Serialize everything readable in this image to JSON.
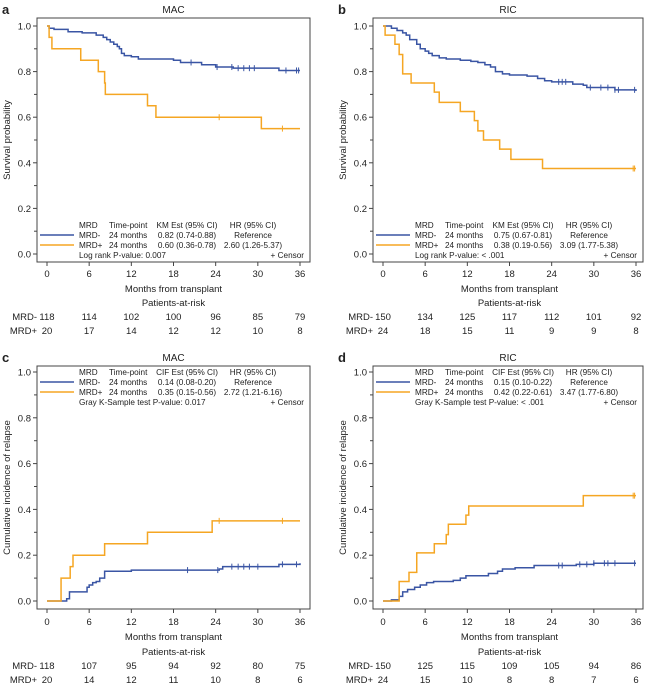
{
  "chart_data": [
    {
      "panel": "a",
      "type": "line",
      "subtype": "kaplan-meier step",
      "title": "MAC",
      "xlabel": "Months from transplant",
      "ylabel": "Survival probability",
      "xlim": [
        0,
        36
      ],
      "ylim": [
        0,
        1.0
      ],
      "xticks": [
        "0",
        "6",
        "12",
        "18",
        "24",
        "30",
        "36"
      ],
      "yticks": [
        "0.0",
        "0.2",
        "0.4",
        "0.6",
        "0.8",
        "1.0"
      ],
      "legend_position": "bottom-left",
      "legend": {
        "headers": [
          "MRD",
          "Time-point",
          "KM Est (95% CI)",
          "HR (95% CI)"
        ],
        "rows": [
          {
            "group": "MRD-",
            "timepoint": "24 months",
            "est": "0.82 (0.74-0.88)",
            "hr": "Reference"
          },
          {
            "group": "MRD+",
            "timepoint": "24 months",
            "est": "0.60 (0.36-0.78)",
            "hr": "2.60 (1.26-5.37)"
          }
        ],
        "test": "Log rank P-value: 0.007",
        "censor": "+ Censor"
      },
      "series": [
        {
          "name": "MRD-",
          "color": "#3a55a4",
          "steps": [
            [
              0,
              1.0
            ],
            [
              0.3,
              0.99
            ],
            [
              1,
              0.985
            ],
            [
              3,
              0.975
            ],
            [
              5,
              0.97
            ],
            [
              7,
              0.96
            ],
            [
              8,
              0.95
            ],
            [
              8.5,
              0.94
            ],
            [
              9,
              0.93
            ],
            [
              9.5,
              0.92
            ],
            [
              10,
              0.91
            ],
            [
              10.3,
              0.9
            ],
            [
              10.6,
              0.88
            ],
            [
              11,
              0.87
            ],
            [
              12,
              0.865
            ],
            [
              13,
              0.855
            ],
            [
              18,
              0.85
            ],
            [
              19,
              0.84
            ],
            [
              22,
              0.83
            ],
            [
              24,
              0.82
            ],
            [
              26.5,
              0.815
            ],
            [
              33,
              0.805
            ],
            [
              36,
              0.805
            ]
          ],
          "censors": [
            20.5,
            24.2,
            26.3,
            27.2,
            28,
            28.8,
            29.5,
            34,
            35.5,
            35.8
          ]
        },
        {
          "name": "MRD+",
          "color": "#f5a623",
          "steps": [
            [
              0,
              1.0
            ],
            [
              0.3,
              0.95
            ],
            [
              0.7,
              0.9
            ],
            [
              4.8,
              0.85
            ],
            [
              7.3,
              0.8
            ],
            [
              8.2,
              0.75
            ],
            [
              8.3,
              0.7
            ],
            [
              14.3,
              0.65
            ],
            [
              15.5,
              0.6
            ],
            [
              30.5,
              0.55
            ],
            [
              36,
              0.55
            ]
          ],
          "censors": [
            24.5,
            33.5
          ]
        }
      ],
      "risk_table": {
        "title": "Patients-at-risk",
        "rows": [
          {
            "label": "MRD-",
            "values": [
              118,
              114,
              102,
              100,
              96,
              85,
              79
            ]
          },
          {
            "label": "MRD+",
            "values": [
              20,
              17,
              14,
              12,
              12,
              10,
              8
            ]
          }
        ]
      }
    },
    {
      "panel": "b",
      "type": "line",
      "subtype": "kaplan-meier step",
      "title": "RIC",
      "xlabel": "Months from transplant",
      "ylabel": "Survival probability",
      "xlim": [
        0,
        36
      ],
      "ylim": [
        0,
        1.0
      ],
      "xticks": [
        "0",
        "6",
        "12",
        "18",
        "24",
        "30",
        "36"
      ],
      "yticks": [
        "0.0",
        "0.2",
        "0.4",
        "0.6",
        "0.8",
        "1.0"
      ],
      "legend_position": "bottom-left",
      "legend": {
        "headers": [
          "MRD",
          "Time-point",
          "KM Est (95% CI)",
          "HR (95% CI)"
        ],
        "rows": [
          {
            "group": "MRD-",
            "timepoint": "24 months",
            "est": "0.75 (0.67-0.81)",
            "hr": "Reference"
          },
          {
            "group": "MRD+",
            "timepoint": "24 months",
            "est": "0.38 (0.19-0.56)",
            "hr": "3.09 (1.77-5.38)"
          }
        ],
        "test": "Log rank P-value: < .001",
        "censor": "+ Censor"
      },
      "series": [
        {
          "name": "MRD-",
          "color": "#3a55a4",
          "steps": [
            [
              0,
              1.0
            ],
            [
              1.2,
              0.99
            ],
            [
              2,
              0.98
            ],
            [
              2.8,
              0.97
            ],
            [
              3.3,
              0.96
            ],
            [
              3.8,
              0.94
            ],
            [
              4.8,
              0.92
            ],
            [
              5.3,
              0.9
            ],
            [
              6,
              0.89
            ],
            [
              6.5,
              0.88
            ],
            [
              7,
              0.87
            ],
            [
              8,
              0.86
            ],
            [
              9,
              0.855
            ],
            [
              11,
              0.85
            ],
            [
              12.5,
              0.845
            ],
            [
              13.5,
              0.84
            ],
            [
              14.5,
              0.83
            ],
            [
              15.3,
              0.82
            ],
            [
              16,
              0.8
            ],
            [
              17,
              0.79
            ],
            [
              18,
              0.785
            ],
            [
              20.5,
              0.78
            ],
            [
              22,
              0.77
            ],
            [
              23,
              0.76
            ],
            [
              24,
              0.755
            ],
            [
              27,
              0.745
            ],
            [
              28.5,
              0.74
            ],
            [
              29,
              0.73
            ],
            [
              33,
              0.72
            ],
            [
              36,
              0.715
            ]
          ],
          "censors": [
            25,
            25.5,
            26,
            29.5,
            31,
            32,
            33,
            33.5,
            35.8
          ]
        },
        {
          "name": "MRD+",
          "color": "#f5a623",
          "steps": [
            [
              0,
              1.0
            ],
            [
              0.3,
              0.96
            ],
            [
              1.7,
              0.92
            ],
            [
              2.3,
              0.875
            ],
            [
              2.8,
              0.79
            ],
            [
              4,
              0.75
            ],
            [
              7.3,
              0.71
            ],
            [
              8,
              0.665
            ],
            [
              11,
              0.625
            ],
            [
              13,
              0.585
            ],
            [
              13.5,
              0.54
            ],
            [
              14.3,
              0.5
            ],
            [
              16.6,
              0.46
            ],
            [
              18.2,
              0.415
            ],
            [
              22.7,
              0.375
            ],
            [
              36,
              0.375
            ]
          ],
          "censors": [
            35.6,
            35.8
          ]
        }
      ],
      "risk_table": {
        "title": "Patients-at-risk",
        "rows": [
          {
            "label": "MRD-",
            "values": [
              150,
              134,
              125,
              117,
              112,
              101,
              92
            ]
          },
          {
            "label": "MRD+",
            "values": [
              24,
              18,
              15,
              11,
              9,
              9,
              8
            ]
          }
        ]
      }
    },
    {
      "panel": "c",
      "type": "line",
      "subtype": "cumulative incidence step",
      "title": "MAC",
      "xlabel": "Months from transplant",
      "ylabel": "Cumulative incidence of relapse",
      "xlim": [
        0,
        36
      ],
      "ylim": [
        0,
        1.0
      ],
      "xticks": [
        "0",
        "6",
        "12",
        "18",
        "24",
        "30",
        "36"
      ],
      "yticks": [
        "0.0",
        "0.2",
        "0.4",
        "0.6",
        "0.8",
        "1.0"
      ],
      "legend_position": "top-left",
      "legend": {
        "headers": [
          "MRD",
          "Time-point",
          "CIF Est (95% CI)",
          "HR (95% CI)"
        ],
        "rows": [
          {
            "group": "MRD-",
            "timepoint": "24 months",
            "est": "0.14 (0.08-0.20)",
            "hr": "Reference"
          },
          {
            "group": "MRD+",
            "timepoint": "24 months",
            "est": "0.35 (0.15-0.56)",
            "hr": "2.72 (1.21-6.16)"
          }
        ],
        "test": "Gray K-Sample test P-value: 0.017",
        "censor": "+ Censor"
      },
      "series": [
        {
          "name": "MRD-",
          "color": "#3a55a4",
          "steps": [
            [
              0,
              0
            ],
            [
              2.5,
              0
            ],
            [
              2.8,
              0.01
            ],
            [
              3.2,
              0.04
            ],
            [
              5.7,
              0.06
            ],
            [
              6,
              0.07
            ],
            [
              6.5,
              0.08
            ],
            [
              7,
              0.085
            ],
            [
              7.5,
              0.1
            ],
            [
              8.2,
              0.13
            ],
            [
              12,
              0.135
            ],
            [
              24.5,
              0.14
            ],
            [
              25,
              0.15
            ],
            [
              33,
              0.16
            ],
            [
              36,
              0.165
            ]
          ],
          "censors": [
            20,
            24.3,
            26.3,
            27.2,
            28,
            28.8,
            30,
            33.5,
            35.5
          ]
        },
        {
          "name": "MRD+",
          "color": "#f5a623",
          "steps": [
            [
              0,
              0
            ],
            [
              2,
              0.1
            ],
            [
              3.3,
              0.15
            ],
            [
              3.7,
              0.2
            ],
            [
              8.2,
              0.25
            ],
            [
              14.3,
              0.3
            ],
            [
              23.5,
              0.35
            ],
            [
              36,
              0.35
            ]
          ],
          "censors": [
            24.5,
            33.5
          ]
        }
      ],
      "risk_table": {
        "title": "Patients-at-risk",
        "rows": [
          {
            "label": "MRD-",
            "values": [
              118,
              107,
              95,
              94,
              92,
              80,
              75
            ]
          },
          {
            "label": "MRD+",
            "values": [
              20,
              14,
              12,
              11,
              10,
              8,
              6
            ]
          }
        ]
      }
    },
    {
      "panel": "d",
      "type": "line",
      "subtype": "cumulative incidence step",
      "title": "RIC",
      "xlabel": "Months from transplant",
      "ylabel": "Cumulative incidence of relapse",
      "xlim": [
        0,
        36
      ],
      "ylim": [
        0,
        1.0
      ],
      "xticks": [
        "0",
        "6",
        "12",
        "18",
        "24",
        "30",
        "36"
      ],
      "yticks": [
        "0.0",
        "0.2",
        "0.4",
        "0.6",
        "0.8",
        "1.0"
      ],
      "legend_position": "top-left",
      "legend": {
        "headers": [
          "MRD",
          "Time-point",
          "CIF Est (95% CI)",
          "HR (95% CI)"
        ],
        "rows": [
          {
            "group": "MRD-",
            "timepoint": "24 months",
            "est": "0.15 (0.10-0.22)",
            "hr": "Reference"
          },
          {
            "group": "MRD+",
            "timepoint": "24 months",
            "est": "0.42 (0.22-0.61)",
            "hr": "3.47 (1.77-6.80)"
          }
        ],
        "test": "Gray K-Sample test P-value: < .001",
        "censor": "+ Censor"
      },
      "series": [
        {
          "name": "MRD-",
          "color": "#3a55a4",
          "steps": [
            [
              0,
              0
            ],
            [
              1.2,
              0.005
            ],
            [
              2.3,
              0.02
            ],
            [
              2.8,
              0.04
            ],
            [
              3.5,
              0.05
            ],
            [
              4.5,
              0.06
            ],
            [
              5.3,
              0.07
            ],
            [
              6.2,
              0.08
            ],
            [
              7.2,
              0.085
            ],
            [
              10,
              0.09
            ],
            [
              11,
              0.1
            ],
            [
              11.8,
              0.11
            ],
            [
              15,
              0.12
            ],
            [
              16.3,
              0.13
            ],
            [
              17,
              0.14
            ],
            [
              18.8,
              0.145
            ],
            [
              21.5,
              0.155
            ],
            [
              27.5,
              0.16
            ],
            [
              30,
              0.165
            ],
            [
              36,
              0.165
            ]
          ],
          "censors": [
            25,
            25.5,
            28,
            29,
            30,
            31.5,
            32,
            33,
            35.8
          ]
        },
        {
          "name": "MRD+",
          "color": "#f5a623",
          "steps": [
            [
              0,
              0
            ],
            [
              2.3,
              0.085
            ],
            [
              3.7,
              0.125
            ],
            [
              4.8,
              0.21
            ],
            [
              7.3,
              0.25
            ],
            [
              9,
              0.29
            ],
            [
              9.3,
              0.335
            ],
            [
              11.8,
              0.375
            ],
            [
              12.2,
              0.415
            ],
            [
              28.5,
              0.46
            ],
            [
              36,
              0.46
            ]
          ],
          "censors": [
            35.6,
            35.8
          ]
        }
      ],
      "risk_table": {
        "title": "Patients-at-risk",
        "rows": [
          {
            "label": "MRD-",
            "values": [
              150,
              125,
              115,
              109,
              105,
              94,
              86
            ]
          },
          {
            "label": "MRD+",
            "values": [
              24,
              15,
              10,
              8,
              8,
              7,
              6
            ]
          }
        ]
      }
    }
  ]
}
